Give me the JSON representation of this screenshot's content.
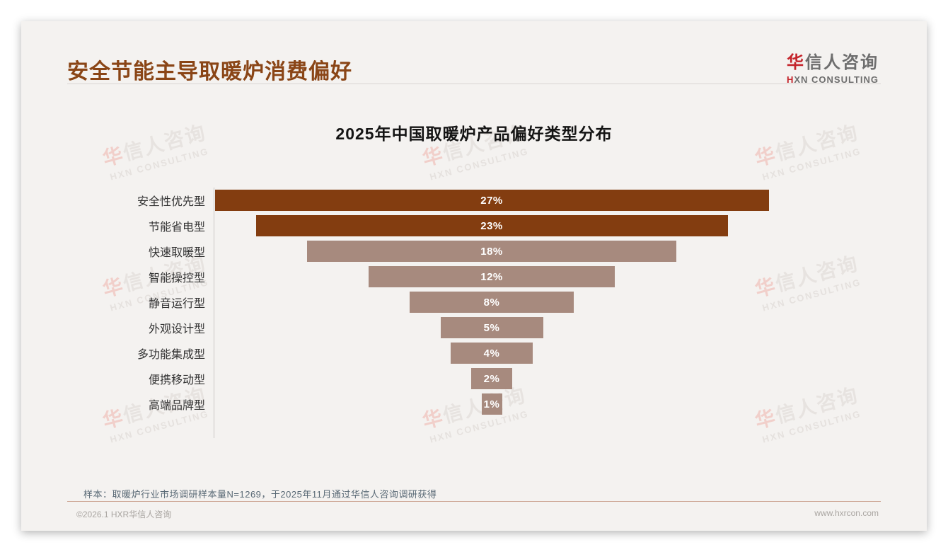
{
  "header": {
    "title": "安全节能主导取暖炉消费偏好",
    "logo": {
      "brand_first": "华",
      "brand_rest": "信人咨询",
      "sub_first": "H",
      "sub_rest": "XN CONSULTING"
    }
  },
  "watermark": {
    "cn_first": "华",
    "cn_rest": "信人咨询",
    "en": "HXN CONSULTING"
  },
  "chart_data": {
    "type": "bar",
    "variant": "horizontal-centered-funnel",
    "title": "2025年中国取暖炉产品偏好类型分布",
    "categories": [
      "安全性优先型",
      "节能省电型",
      "快速取暖型",
      "智能操控型",
      "静音运行型",
      "外观设计型",
      "多功能集成型",
      "便携移动型",
      "高端品牌型"
    ],
    "values": [
      27,
      23,
      18,
      12,
      8,
      5,
      4,
      2,
      1
    ],
    "value_labels": [
      "27%",
      "23%",
      "18%",
      "12%",
      "8%",
      "5%",
      "4%",
      "2%",
      "1%"
    ],
    "unit": "%",
    "colors": [
      "#833D10",
      "#833D10",
      "#A78A7E",
      "#A78A7E",
      "#A78A7E",
      "#A78A7E",
      "#A78A7E",
      "#A78A7E",
      "#A78A7E"
    ],
    "xlabel": "",
    "ylabel": "",
    "legend": false,
    "grid": false
  },
  "footer": {
    "note": "样本：取暖炉行业市场调研样本量N=1269，于2025年11月通过华信人咨询调研获得",
    "left": "©2026.1 HXR华信人咨询",
    "right": "www.hxrcon.com"
  },
  "theme": {
    "title_brown": "#8A4516",
    "bar_dark": "#833D10",
    "bar_light": "#A78A7E",
    "brand_red": "#C4242B",
    "card_bg": "#F4F2F0"
  }
}
